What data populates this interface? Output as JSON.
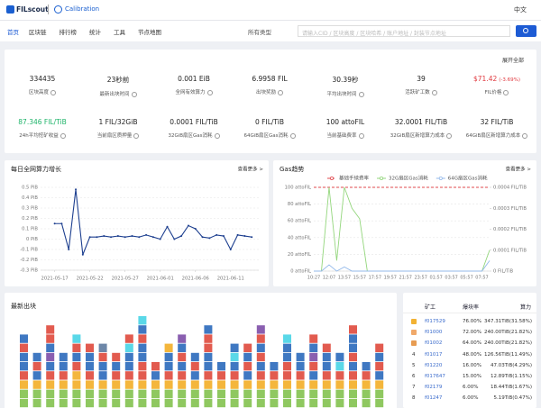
{
  "header": {
    "logo": "FILscout",
    "network": "Calibration",
    "language": "中文"
  },
  "nav": {
    "items": [
      "首页",
      "区块链",
      "排行榜",
      "统计",
      "工具",
      "节点地图"
    ],
    "select": "所有类型",
    "search_placeholder": "请输入CID / 区块高度 / 区块哈希 / 账户地址 / 封装节点地址"
  },
  "stats": {
    "expand": "展开全部",
    "items": [
      {
        "value": "334435",
        "label": "区块高度"
      },
      {
        "value": "23秒前",
        "label": "最新出块时间"
      },
      {
        "value": "0.001 EiB",
        "label": "全网有效算力"
      },
      {
        "value": "6.9958 FIL",
        "label": "出块奖励"
      },
      {
        "value": "30.39秒",
        "label": "平均出块时间"
      },
      {
        "value": "39",
        "label": "活跃矿工数"
      },
      {
        "value": "$71.42",
        "change": "(-3.69%)",
        "label": "FIL价格",
        "color": "#e0383e"
      },
      {
        "value": "87.346 FIL/TiB",
        "label": "24h平均挖矿收益",
        "color": "#1fb46a"
      },
      {
        "value": "1 FIL/32GiB",
        "label": "当前扇区质押量"
      },
      {
        "value": "0.0001 FIL/TiB",
        "label": "32GiB扇区Gas消耗"
      },
      {
        "value": "0 FIL/TiB",
        "label": "64GiB扇区Gas消耗"
      },
      {
        "value": "100 attoFIL",
        "label": "当前基础费率"
      },
      {
        "value": "32.0001 FIL/TiB",
        "label": "32GiB扇区新增算力成本"
      },
      {
        "value": "32 FIL/TiB",
        "label": "64GiB扇区新增算力成本"
      }
    ]
  },
  "chart_data": [
    {
      "type": "line",
      "title": "每日全网算力增长",
      "more": "查看更多 >",
      "x": [
        "2021-05-17",
        "2021-05-18",
        "2021-05-19",
        "2021-05-20",
        "2021-05-21",
        "2021-05-22",
        "2021-05-23",
        "2021-05-24",
        "2021-05-25",
        "2021-05-26",
        "2021-05-27",
        "2021-05-28",
        "2021-05-29",
        "2021-05-30",
        "2021-05-31",
        "2021-06-01",
        "2021-06-02",
        "2021-06-03",
        "2021-06-04",
        "2021-06-05",
        "2021-06-06",
        "2021-06-07",
        "2021-06-08",
        "2021-06-09",
        "2021-06-10",
        "2021-06-11",
        "2021-06-12",
        "2021-06-13",
        "2021-06-14"
      ],
      "series": [
        {
          "color": "#1d3f8f",
          "values": [
            0.15,
            0.15,
            -0.1,
            0.48,
            -0.15,
            0.02,
            0.02,
            0.03,
            0.02,
            0.03,
            0.02,
            0.03,
            0.02,
            0.04,
            0.02,
            0.0,
            0.12,
            0.0,
            0.03,
            0.13,
            0.1,
            0.02,
            0.01,
            0.04,
            0.03,
            -0.1,
            0.04,
            0.03,
            0.02
          ]
        }
      ],
      "xlim": [
        "2021-05-15",
        "2021-06-15"
      ],
      "xticks": [
        "2021-05-17",
        "2021-05-22",
        "2021-05-27",
        "2021-06-01",
        "2021-06-06",
        "2021-06-11"
      ],
      "ylim": [
        -0.3,
        0.5
      ],
      "yticks": [
        {
          "value": 0.5,
          "label": "0.5 PiB"
        },
        {
          "value": 0.4,
          "label": "0.4 PiB"
        },
        {
          "value": 0.3,
          "label": "0.3 PiB"
        },
        {
          "value": 0.2,
          "label": "0.2 PiB"
        },
        {
          "value": 0.1,
          "label": "0.1 PiB"
        },
        {
          "value": 0,
          "label": "0 PiB"
        },
        {
          "value": -0.1,
          "label": "-0.1 PiB"
        },
        {
          "value": -0.2,
          "label": "-0.2 PiB"
        },
        {
          "value": -0.3,
          "label": "-0.3 PiB"
        }
      ],
      "grid": true
    },
    {
      "type": "line",
      "title": "Gas趋势",
      "more": "查看更多 >",
      "categories": [
        "10:27",
        null,
        "12:07",
        null,
        "13:57",
        null,
        "15:57",
        null,
        "17:57",
        null,
        "19:57",
        null,
        "21:57",
        null,
        "23:57",
        null,
        "01:57",
        null,
        "03:57",
        null,
        "05:57",
        null,
        "07:57",
        null
      ],
      "series": [
        {
          "name": "基础手续费率",
          "color": "#e0484e",
          "dashed": true,
          "values": [
            100,
            100,
            100,
            100,
            100,
            100,
            100,
            100,
            100,
            100,
            100,
            100,
            100,
            100,
            100,
            100,
            100,
            100,
            100,
            100,
            100,
            100,
            100,
            100
          ]
        },
        {
          "name": "32G扇区Gas消耗",
          "color": "#93d67c",
          "axis": "y2",
          "values": [
            0,
            0,
            0.0004,
            5e-05,
            0.0004,
            0.0003,
            0.00025,
            0,
            0,
            0,
            0,
            0,
            0,
            0,
            0,
            0,
            0,
            0,
            0,
            0,
            0,
            0,
            0,
            0.0001
          ]
        },
        {
          "name": "64G扇区Gas消耗",
          "color": "#93b9ea",
          "axis": "y2",
          "values": [
            0,
            0,
            3e-05,
            0,
            2e-05,
            0,
            0,
            0,
            0,
            0,
            0,
            0,
            0,
            0,
            0,
            0,
            0,
            0,
            0,
            0,
            0,
            0,
            0,
            5e-05
          ]
        }
      ],
      "ylim": [
        0,
        100
      ],
      "yticks": [
        {
          "value": 0,
          "label": "0 attoFIL"
        },
        {
          "value": 20,
          "label": "20 attoFIL"
        },
        {
          "value": 40,
          "label": "40 attoFIL"
        },
        {
          "value": 60,
          "label": "60 attoFIL"
        },
        {
          "value": 80,
          "label": "80 attoFIL"
        },
        {
          "value": 100,
          "label": "100 attoFIL"
        }
      ],
      "y2lim": [
        0,
        0.0004
      ],
      "y2ticks": [
        {
          "value": 0,
          "label": "0 FIL/TiB"
        },
        {
          "value": 0.0001,
          "label": "0.0001 FIL/TiB"
        },
        {
          "value": 0.0002,
          "label": "0.0002 FIL/TiB"
        },
        {
          "value": 0.0003,
          "label": "0.0003 FIL/TiB"
        },
        {
          "value": 0.0004,
          "label": "0.0004 FIL/TiB"
        }
      ],
      "grid": true
    }
  ],
  "blocks": {
    "title": "最新出块",
    "palette": [
      "#8fc860",
      "#f4b63c",
      "#e25b4f",
      "#3f78c2",
      "#5ad8e8",
      "#8a5fb0",
      "#6d87a8"
    ],
    "columns": [
      [
        0,
        0,
        1,
        2,
        3,
        3,
        2,
        3
      ],
      [
        0,
        0,
        1,
        3,
        2,
        3
      ],
      [
        0,
        0,
        1,
        2,
        3,
        5,
        3,
        2,
        2
      ],
      [
        0,
        0,
        1,
        2,
        3,
        3
      ],
      [
        0,
        0,
        1,
        1,
        2,
        3,
        2,
        4
      ],
      [
        0,
        0,
        1,
        2,
        3,
        3,
        2
      ],
      [
        0,
        0,
        1,
        3,
        3,
        2,
        6
      ],
      [
        0,
        0,
        1,
        2,
        3,
        2
      ],
      [
        0,
        0,
        1,
        2,
        3,
        3,
        4,
        2
      ],
      [
        0,
        0,
        1,
        2,
        2,
        3,
        3,
        2,
        3,
        4
      ],
      [
        0,
        0,
        1,
        3,
        2
      ],
      [
        0,
        0,
        1,
        2,
        3,
        3,
        1
      ],
      [
        0,
        0,
        1,
        2,
        3,
        2,
        3,
        5
      ],
      [
        0,
        0,
        1,
        3,
        2,
        3
      ],
      [
        0,
        0,
        1,
        2,
        3,
        3,
        2,
        2,
        3
      ],
      [
        0,
        0,
        1,
        2,
        3
      ],
      [
        0,
        0,
        1,
        2,
        3,
        4,
        3
      ],
      [
        0,
        0,
        1,
        3,
        2,
        3,
        2
      ],
      [
        0,
        0,
        1,
        2,
        3,
        2,
        3,
        2,
        5
      ],
      [
        0,
        0,
        1,
        2,
        3
      ],
      [
        0,
        0,
        1,
        2,
        2,
        3,
        3,
        4
      ],
      [
        0,
        0,
        1,
        2,
        3,
        3
      ],
      [
        0,
        0,
        1,
        3,
        2,
        5,
        3,
        2
      ],
      [
        0,
        0,
        1,
        2,
        3,
        3,
        2
      ],
      [
        0,
        0,
        1,
        2,
        4,
        3
      ],
      [
        0,
        0,
        1,
        2,
        3,
        2,
        3,
        3,
        2
      ],
      [
        0,
        0,
        1,
        2,
        3
      ],
      [
        0,
        0,
        1,
        3,
        2,
        3,
        2
      ]
    ]
  },
  "ranking": {
    "columns": [
      "矿工",
      "爆块率",
      "算力"
    ],
    "rows": [
      {
        "miner": "f017529",
        "rate": "76.00%",
        "power": "347.31TiB(31.58%)"
      },
      {
        "miner": "f01000",
        "rate": "72.00%",
        "power": "240.00TiB(21.82%)"
      },
      {
        "miner": "f01002",
        "rate": "64.00%",
        "power": "240.00TiB(21.82%)"
      },
      {
        "rank": 4,
        "miner": "f01017",
        "rate": "48.00%",
        "power": "126.56TiB(11.49%)"
      },
      {
        "rank": 5,
        "miner": "f01220",
        "rate": "16.00%",
        "power": "47.03TiB(4.29%)"
      },
      {
        "rank": 6,
        "miner": "f017647",
        "rate": "15.00%",
        "power": "12.89TiB(1.15%)"
      },
      {
        "rank": 7,
        "miner": "f02179",
        "rate": "6.00%",
        "power": "18.44TiB(1.67%)"
      },
      {
        "rank": 8,
        "miner": "f01247",
        "rate": "6.00%",
        "power": "5.19TiB(0.47%)"
      }
    ]
  }
}
